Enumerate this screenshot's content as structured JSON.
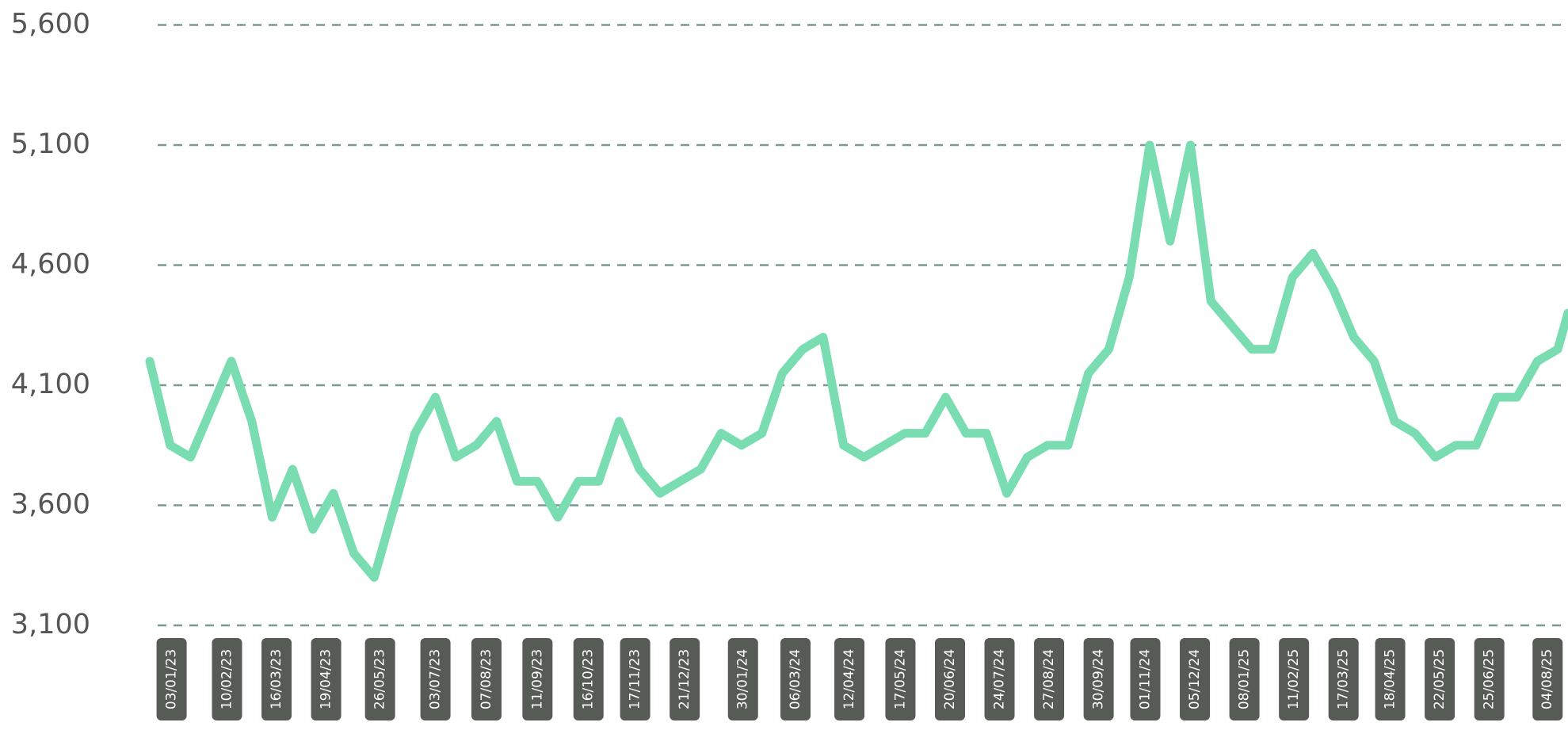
{
  "chart_data": {
    "type": "line",
    "x": [
      "19/12/22",
      "02/01/23",
      "16/01/23",
      "30/01/23",
      "13/02/23",
      "27/02/23",
      "13/03/23",
      "27/03/23",
      "10/04/23",
      "24/04/23",
      "08/05/23",
      "22/05/23",
      "05/06/23",
      "19/06/23",
      "03/07/23",
      "17/07/23",
      "31/07/23",
      "14/08/23",
      "28/08/23",
      "11/09/23",
      "25/09/23",
      "09/10/23",
      "23/10/23",
      "06/11/23",
      "20/11/23",
      "04/12/23",
      "18/12/23",
      "01/01/24",
      "15/01/24",
      "29/01/24",
      "12/02/24",
      "26/02/24",
      "11/03/24",
      "25/03/24",
      "08/04/24",
      "22/04/24",
      "06/05/24",
      "20/05/24",
      "03/06/24",
      "17/06/24",
      "01/07/24",
      "15/07/24",
      "29/07/24",
      "12/08/24",
      "26/08/24",
      "09/09/24",
      "23/09/24",
      "07/10/24",
      "21/10/24",
      "04/11/24",
      "18/11/24",
      "02/12/24",
      "16/12/24",
      "30/12/24",
      "13/01/25",
      "27/01/25",
      "10/02/25",
      "24/02/25",
      "10/03/25",
      "24/03/25",
      "07/04/25",
      "21/04/25",
      "05/05/25",
      "19/05/25",
      "02/06/25",
      "16/06/25",
      "30/06/25",
      "14/07/25",
      "28/07/25",
      "11/08/25",
      "18/08/25"
    ],
    "series": [
      {
        "color": "#7adcb1",
        "values": [
          4200,
          3850,
          3800,
          4000,
          4200,
          3950,
          3550,
          3750,
          3500,
          3650,
          3400,
          3300,
          3600,
          3900,
          4050,
          3800,
          3850,
          3950,
          3700,
          3700,
          3550,
          3700,
          3700,
          3950,
          3750,
          3650,
          3700,
          3750,
          3900,
          3850,
          3900,
          4150,
          4250,
          4300,
          3850,
          3800,
          3850,
          3900,
          3900,
          4050,
          3900,
          3900,
          3650,
          3800,
          3850,
          3850,
          4150,
          4250,
          4550,
          5100,
          4700,
          5100,
          4450,
          4350,
          4250,
          4250,
          4550,
          4650,
          4500,
          4300,
          4200,
          3950,
          3900,
          3800,
          3850,
          3850,
          4050,
          4050,
          4200,
          4250,
          4400
        ]
      }
    ],
    "xlim": [
      "19/12/22",
      "18/08/25"
    ],
    "xticks": [
      "03/01/23",
      "10/02/23",
      "16/03/23",
      "19/04/23",
      "26/05/23",
      "03/07/23",
      "07/08/23",
      "11/09/23",
      "16/10/23",
      "17/11/23",
      "21/12/23",
      "30/01/24",
      "06/03/24",
      "12/04/24",
      "17/05/24",
      "20/06/24",
      "24/07/24",
      "27/08/24",
      "30/09/24",
      "01/11/24",
      "05/12/24",
      "08/01/25",
      "11/02/25",
      "17/03/25",
      "18/04/25",
      "22/05/25",
      "25/06/25",
      "04/08/25"
    ],
    "ylim": [
      3100,
      5600
    ],
    "yticks": [
      {
        "value": 3100,
        "label": "3,100"
      },
      {
        "value": 3600,
        "label": "3,600"
      },
      {
        "value": 4100,
        "label": "4,100"
      },
      {
        "value": 4600,
        "label": "4,600"
      },
      {
        "value": 5100,
        "label": "5,100"
      },
      {
        "value": 5600,
        "label": "5,600"
      }
    ],
    "grid": true
  }
}
